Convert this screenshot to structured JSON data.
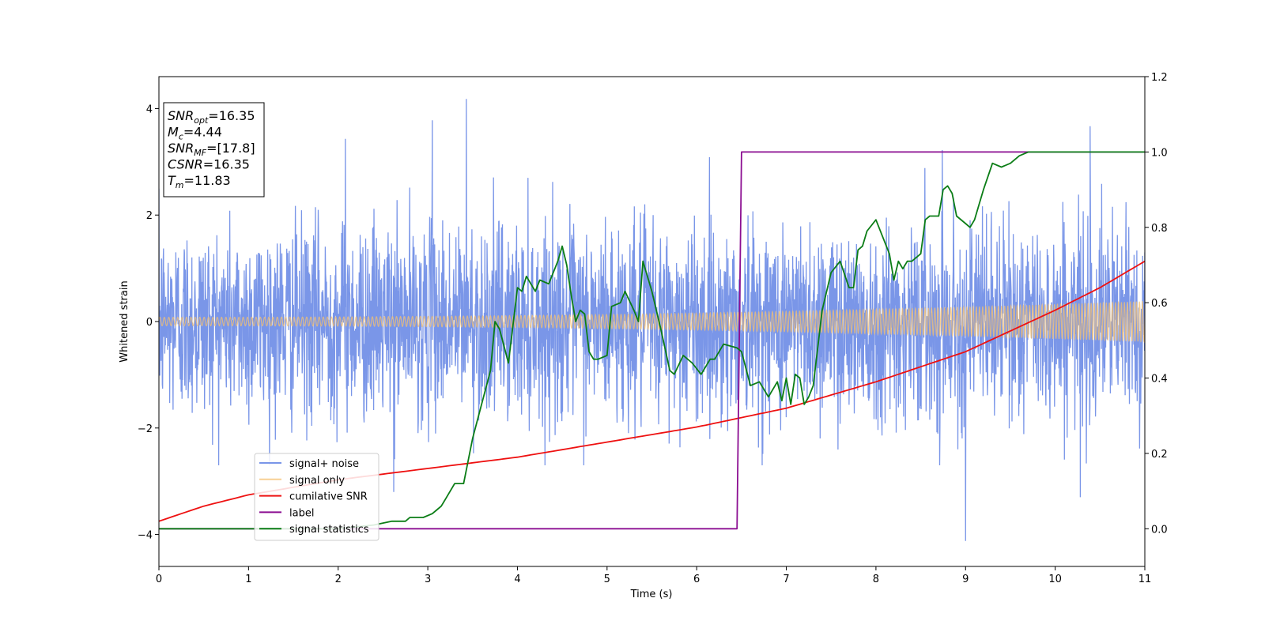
{
  "chart_data": {
    "type": "line",
    "xlabel": "Time (s)",
    "ylabel": "Whitened strain",
    "xlim": [
      0,
      11
    ],
    "ylim_left": [
      -4.6,
      4.6
    ],
    "ylim_right": [
      -0.1,
      1.2
    ],
    "x_ticks": [
      0,
      1,
      2,
      3,
      4,
      5,
      6,
      7,
      8,
      9,
      10,
      11
    ],
    "y_ticks_left": [
      -4,
      -2,
      0,
      2,
      4
    ],
    "y_ticks_right": [
      "0.0",
      "0.2",
      "0.4",
      "0.6",
      "0.8",
      "1.0",
      "1.2"
    ],
    "y_tick_labels_left": [
      "−4",
      "−2",
      "0",
      "2",
      "4"
    ],
    "grid": false,
    "legend_placement": "lower-left",
    "series": [
      {
        "name": "signal+ noise",
        "axis": "left",
        "color": "#7a96e8",
        "kind": "noise",
        "std": 0.9,
        "typical_range": [
          -2.7,
          3.4
        ],
        "extremes": [
          {
            "x": 2.08,
            "y": 3.43
          },
          {
            "x": 3.05,
            "y": 3.78
          },
          {
            "x": 3.43,
            "y": 4.18
          },
          {
            "x": 8.74,
            "y": 3.22
          },
          {
            "x": 10.39,
            "y": 3.67
          },
          {
            "x": 9.0,
            "y": -4.12
          },
          {
            "x": 2.62,
            "y": -3.2
          },
          {
            "x": 10.28,
            "y": -3.3
          }
        ]
      },
      {
        "name": "signal only",
        "axis": "left",
        "color": "#f5c070",
        "kind": "chirp",
        "amplitude_start": 0.08,
        "amplitude_end": 0.38
      },
      {
        "name": "cumilative SNR",
        "axis": "right",
        "color": "#ee1111",
        "x": [
          0,
          0.5,
          1,
          2,
          3,
          4,
          5,
          6,
          7,
          8,
          9,
          10,
          10.5,
          11
        ],
        "y": [
          0.02,
          0.06,
          0.09,
          0.13,
          0.16,
          0.19,
          0.23,
          0.27,
          0.32,
          0.39,
          0.47,
          0.58,
          0.64,
          0.71
        ]
      },
      {
        "name": "label",
        "axis": "right",
        "color": "#8b0d91",
        "x": [
          0,
          6.45,
          6.5,
          11
        ],
        "y": [
          0.0,
          0.0,
          1.0,
          1.0
        ]
      },
      {
        "name": "signal statistics",
        "axis": "right",
        "color": "#0b7d16",
        "x": [
          0,
          1,
          2,
          2.4,
          2.6,
          2.75,
          2.8,
          2.9,
          2.95,
          3.05,
          3.1,
          3.15,
          3.2,
          3.3,
          3.4,
          3.5,
          3.6,
          3.7,
          3.75,
          3.8,
          3.9,
          4.0,
          4.05,
          4.1,
          4.2,
          4.25,
          4.35,
          4.45,
          4.5,
          4.55,
          4.6,
          4.65,
          4.7,
          4.75,
          4.8,
          4.85,
          4.9,
          5.0,
          5.05,
          5.15,
          5.2,
          5.3,
          5.35,
          5.4,
          5.5,
          5.6,
          5.7,
          5.75,
          5.85,
          5.95,
          6.05,
          6.15,
          6.2,
          6.3,
          6.45,
          6.5,
          6.6,
          6.7,
          6.8,
          6.9,
          6.95,
          7.0,
          7.05,
          7.1,
          7.15,
          7.2,
          7.25,
          7.3,
          7.4,
          7.5,
          7.6,
          7.7,
          7.75,
          7.8,
          7.85,
          7.9,
          8.0,
          8.1,
          8.15,
          8.2,
          8.25,
          8.3,
          8.35,
          8.4,
          8.5,
          8.55,
          8.6,
          8.65,
          8.7,
          8.75,
          8.8,
          8.85,
          8.9,
          9.0,
          9.05,
          9.1,
          9.2,
          9.3,
          9.4,
          9.5,
          9.6,
          9.7,
          9.8,
          10.0,
          10.4,
          11.0
        ],
        "y": [
          0.0,
          0.0,
          0.0,
          0.01,
          0.02,
          0.02,
          0.03,
          0.03,
          0.03,
          0.04,
          0.05,
          0.06,
          0.08,
          0.12,
          0.12,
          0.24,
          0.33,
          0.42,
          0.55,
          0.53,
          0.44,
          0.64,
          0.63,
          0.67,
          0.63,
          0.66,
          0.65,
          0.71,
          0.75,
          0.7,
          0.62,
          0.55,
          0.58,
          0.57,
          0.47,
          0.45,
          0.45,
          0.46,
          0.59,
          0.6,
          0.63,
          0.58,
          0.55,
          0.71,
          0.63,
          0.53,
          0.42,
          0.41,
          0.46,
          0.44,
          0.41,
          0.45,
          0.45,
          0.49,
          0.48,
          0.47,
          0.38,
          0.39,
          0.35,
          0.39,
          0.34,
          0.4,
          0.33,
          0.41,
          0.4,
          0.33,
          0.35,
          0.38,
          0.58,
          0.68,
          0.71,
          0.64,
          0.64,
          0.74,
          0.75,
          0.79,
          0.82,
          0.76,
          0.73,
          0.66,
          0.71,
          0.69,
          0.71,
          0.71,
          0.73,
          0.82,
          0.83,
          0.83,
          0.83,
          0.9,
          0.91,
          0.89,
          0.83,
          0.81,
          0.8,
          0.82,
          0.9,
          0.97,
          0.96,
          0.97,
          0.99,
          1.0,
          1.0,
          1.0,
          1.0,
          1.0
        ]
      }
    ]
  },
  "stats_box": {
    "lines": [
      {
        "main": "SNR",
        "sub": "opt",
        "rest": "=16.35"
      },
      {
        "main": "M",
        "sub": "c",
        "rest": "=4.44"
      },
      {
        "main": "SNR",
        "sub": "MF",
        "rest": "=[17.8]"
      },
      {
        "main": "CSNR",
        "sub": "",
        "rest": "=16.35"
      },
      {
        "main": "T",
        "sub": "m",
        "rest": "=11.83"
      }
    ]
  }
}
